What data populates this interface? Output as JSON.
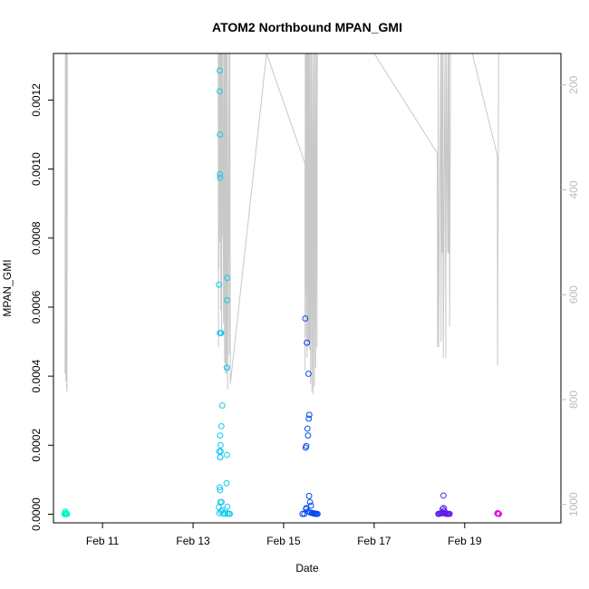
{
  "chart_data": {
    "type": "scatter",
    "title": "ATOM2 Northbound MPAN_GMI",
    "xlabel": "Date",
    "ylabel": "MPAN_GMI",
    "xlim": [
      "2016-02-09T22:00",
      "2016-02-21T03:00"
    ],
    "ylim": [
      -2.5e-05,
      0.001335
    ],
    "y_ticks": [
      "0.0000",
      "0.0002",
      "0.0004",
      "0.0006",
      "0.0008",
      "0.0010",
      "0.0012"
    ],
    "y_tick_values": [
      0,
      0.0002,
      0.0004,
      0.0006,
      0.0008,
      0.001,
      0.0012
    ],
    "x_ticks": [
      "Feb 11",
      "Feb 13",
      "Feb 15",
      "Feb 17",
      "Feb 19"
    ],
    "x_tick_values": [
      "2016-02-11T00:00",
      "2016-02-13T00:00",
      "2016-02-15T00:00",
      "2016-02-17T00:00",
      "2016-02-19T00:00"
    ],
    "right_axis": {
      "quantity": "pressure",
      "reversed": true,
      "ticks": [
        "200",
        "400",
        "600",
        "800",
        "1000"
      ],
      "tick_values": [
        200,
        400,
        600,
        800,
        1000
      ],
      "range": [
        1035,
        140
      ],
      "color": "#bbbbbb"
    },
    "pressure_trace": {
      "color": "#c8c8c8",
      "x": [
        "2016-02-10T04:10",
        "2016-02-10T04:20",
        "2016-02-10T04:35",
        "2016-02-10T04:45",
        "2016-02-10T05:00",
        "2016-02-10T05:05",
        "2016-02-10T05:10",
        "2016-02-10T05:20",
        "2016-02-13T13:20",
        "2016-02-13T13:30",
        "2016-02-13T13:35",
        "2016-02-13T13:45",
        "2016-02-13T13:50",
        "2016-02-13T14:05",
        "2016-02-13T14:10",
        "2016-02-13T14:20",
        "2016-02-13T14:25",
        "2016-02-13T14:45",
        "2016-02-13T14:55",
        "2016-02-13T15:10",
        "2016-02-13T15:20",
        "2016-02-13T15:30",
        "2016-02-13T15:50",
        "2016-02-13T16:10",
        "2016-02-13T16:30",
        "2016-02-13T16:45",
        "2016-02-13T17:00",
        "2016-02-13T17:15",
        "2016-02-13T17:30",
        "2016-02-13T17:45",
        "2016-02-13T18:00",
        "2016-02-13T18:20",
        "2016-02-13T18:50",
        "2016-02-13T19:10",
        "2016-02-13T19:30",
        "2016-02-13T19:45",
        "2016-02-14T15:00",
        "2016-02-15T11:20",
        "2016-02-15T11:25",
        "2016-02-15T11:30",
        "2016-02-15T11:40",
        "2016-02-15T11:45",
        "2016-02-15T12:00",
        "2016-02-15T12:10",
        "2016-02-15T12:25",
        "2016-02-15T12:35",
        "2016-02-15T12:50",
        "2016-02-15T13:00",
        "2016-02-15T13:15",
        "2016-02-15T13:30",
        "2016-02-15T13:45",
        "2016-02-15T14:00",
        "2016-02-15T14:20",
        "2016-02-15T14:40",
        "2016-02-15T15:00",
        "2016-02-15T15:20",
        "2016-02-15T15:40",
        "2016-02-15T16:00",
        "2016-02-15T16:20",
        "2016-02-15T16:40",
        "2016-02-15T17:00",
        "2016-02-15T17:20",
        "2016-02-15T17:40",
        "2016-02-15T17:50",
        "2016-02-15T18:00",
        "2016-02-17T00:00",
        "2016-02-18T09:30",
        "2016-02-18T09:40",
        "2016-02-18T10:00",
        "2016-02-18T10:10",
        "2016-02-18T11:20",
        "2016-02-18T11:30",
        "2016-02-18T12:00",
        "2016-02-18T12:10",
        "2016-02-18T12:30",
        "2016-02-18T12:40",
        "2016-02-18T13:30",
        "2016-02-18T14:00",
        "2016-02-18T14:15",
        "2016-02-18T15:00",
        "2016-02-18T15:10",
        "2016-02-18T15:30",
        "2016-02-18T15:40",
        "2016-02-18T16:00",
        "2016-02-18T16:30",
        "2016-02-19T04:00",
        "2016-02-19T17:20",
        "2016-02-19T17:25",
        "2016-02-19T18:00",
        "2016-02-19T18:30"
      ],
      "y": [
        750,
        140,
        765,
        140,
        780,
        140,
        785,
        140,
        130,
        700,
        140,
        550,
        140,
        460,
        140,
        500,
        140,
        630,
        140,
        680,
        140,
        490,
        140,
        655,
        140,
        730,
        140,
        750,
        140,
        750,
        140,
        780,
        140,
        715,
        140,
        770,
        140,
        350,
        745,
        140,
        680,
        140,
        600,
        140,
        720,
        140,
        700,
        140,
        690,
        140,
        705,
        140,
        770,
        140,
        785,
        140,
        790,
        140,
        775,
        140,
        740,
        140,
        700,
        140,
        140,
        140,
        330,
        700,
        140,
        700,
        140,
        690,
        140,
        520,
        140,
        720,
        140,
        720,
        140,
        520,
        140,
        520,
        140,
        660,
        140,
        140,
        335,
        735,
        140,
        140
      ]
    },
    "series": [
      {
        "color": "#00f5c8",
        "x": [
          "2016-02-10T03:50",
          "2016-02-10T04:00",
          "2016-02-10T04:10",
          "2016-02-10T04:20",
          "2016-02-10T04:30",
          "2016-02-10T04:40",
          "2016-02-10T04:50",
          "2016-02-10T05:00",
          "2016-02-10T05:10",
          "2016-02-10T04:15",
          "2016-02-10T04:40"
        ],
        "y": [
          5e-07,
          1e-06,
          2e-06,
          1.5e-06,
          1e-06,
          1e-06,
          8e-07,
          5e-07,
          5e-07,
          8e-06,
          4e-06
        ]
      },
      {
        "color": "#12c8f0",
        "x": [
          "2016-02-13T14:10",
          "2016-02-13T14:05",
          "2016-02-13T14:15",
          "2016-02-13T14:15",
          "2016-02-13T14:20",
          "2016-02-13T14:35",
          "2016-02-13T18:05",
          "2016-02-13T13:45",
          "2016-02-13T14:15",
          "2016-02-13T14:55",
          "2016-02-13T18:00",
          "2016-02-13T17:50",
          "2016-02-13T17:55",
          "2016-02-13T15:30",
          "2016-02-13T15:00",
          "2016-02-13T14:20",
          "2016-02-13T14:35",
          "2016-02-13T14:25",
          "2016-02-13T14:40",
          "2016-02-13T13:55",
          "2016-02-13T14:25",
          "2016-02-13T18:00",
          "2016-02-13T14:05",
          "2016-02-13T14:20",
          "2016-02-13T17:45",
          "2016-02-13T13:40",
          "2016-02-13T15:05",
          "2016-02-13T18:10",
          "2016-02-13T14:30",
          "2016-02-13T15:20",
          "2016-02-13T14:50",
          "2016-02-13T14:00",
          "2016-02-13T16:00",
          "2016-02-13T17:00",
          "2016-02-13T18:10",
          "2016-02-13T19:00",
          "2016-02-13T19:30"
        ],
        "y": [
          0.001285,
          0.001225,
          0.0011,
          0.000985,
          0.000975,
          0.000525,
          0.000685,
          0.000665,
          0.000525,
          0.000525,
          0.00062,
          0.000425,
          0.000425,
          0.000315,
          0.000255,
          0.000228,
          0.0002,
          0.000165,
          0.000182,
          0.000182,
          0.000165,
          0.000172,
          7.8e-05,
          7e-05,
          9e-05,
          2e-05,
          3.5e-05,
          2.2e-05,
          3.5e-05,
          1.2e-05,
          8e-06,
          3e-06,
          2e-06,
          2e-06,
          3e-06,
          1e-06,
          1e-06
        ]
      },
      {
        "color": "#0046f0",
        "x": [
          "2016-02-15T11:30",
          "2016-02-15T12:20",
          "2016-02-15T13:10",
          "2016-02-15T13:35",
          "2016-02-15T13:20",
          "2016-02-15T12:40",
          "2016-02-15T12:55",
          "2016-02-15T11:40",
          "2016-02-15T12:00",
          "2016-02-15T13:30",
          "2016-02-15T14:00",
          "2016-02-15T14:30",
          "2016-02-15T12:05",
          "2016-02-15T11:55",
          "2016-02-15T13:00",
          "2016-02-15T14:10",
          "2016-02-15T15:00",
          "2016-02-15T15:30",
          "2016-02-15T16:00",
          "2016-02-15T16:30",
          "2016-02-15T17:00",
          "2016-02-15T17:30",
          "2016-02-15T18:00",
          "2016-02-15T10:00",
          "2016-02-15T11:00"
        ],
        "y": [
          0.000567,
          0.000497,
          0.000407,
          0.000288,
          0.000277,
          0.000248,
          0.000228,
          0.000193,
          0.000198,
          5.3e-05,
          3.5e-05,
          2.5e-05,
          1.8e-05,
          1.5e-05,
          8e-06,
          5e-06,
          4e-06,
          3e-06,
          2e-06,
          2e-06,
          1e-06,
          1e-06,
          1e-06,
          1e-06,
          1e-06
        ]
      },
      {
        "color": "#5a1ee6",
        "x": [
          "2016-02-18T10:00",
          "2016-02-18T10:30",
          "2016-02-18T11:00",
          "2016-02-18T11:30",
          "2016-02-18T12:00",
          "2016-02-18T12:30",
          "2016-02-18T13:00",
          "2016-02-18T13:30",
          "2016-02-18T14:00",
          "2016-02-18T14:30",
          "2016-02-18T15:00",
          "2016-02-18T15:30",
          "2016-02-18T16:00",
          "2016-02-18T12:20",
          "2016-02-18T12:45",
          "2016-02-18T12:50",
          "2016-02-18T13:15"
        ],
        "y": [
          1e-06,
          1e-06,
          2e-06,
          3e-06,
          4e-06,
          5e-06,
          3e-06,
          2e-06,
          2e-06,
          1e-06,
          1e-06,
          1e-06,
          1e-06,
          1.5e-05,
          5.4e-05,
          1.8e-05,
          1e-05
        ]
      },
      {
        "color": "#e600f0",
        "x": [
          "2016-02-19T17:20",
          "2016-02-19T17:30",
          "2016-02-19T17:40",
          "2016-02-19T17:50",
          "2016-02-19T18:00",
          "2016-02-19T18:10"
        ],
        "y": [
          2e-06,
          3e-06,
          2e-06,
          1e-06,
          1e-06,
          1e-06
        ]
      }
    ]
  }
}
